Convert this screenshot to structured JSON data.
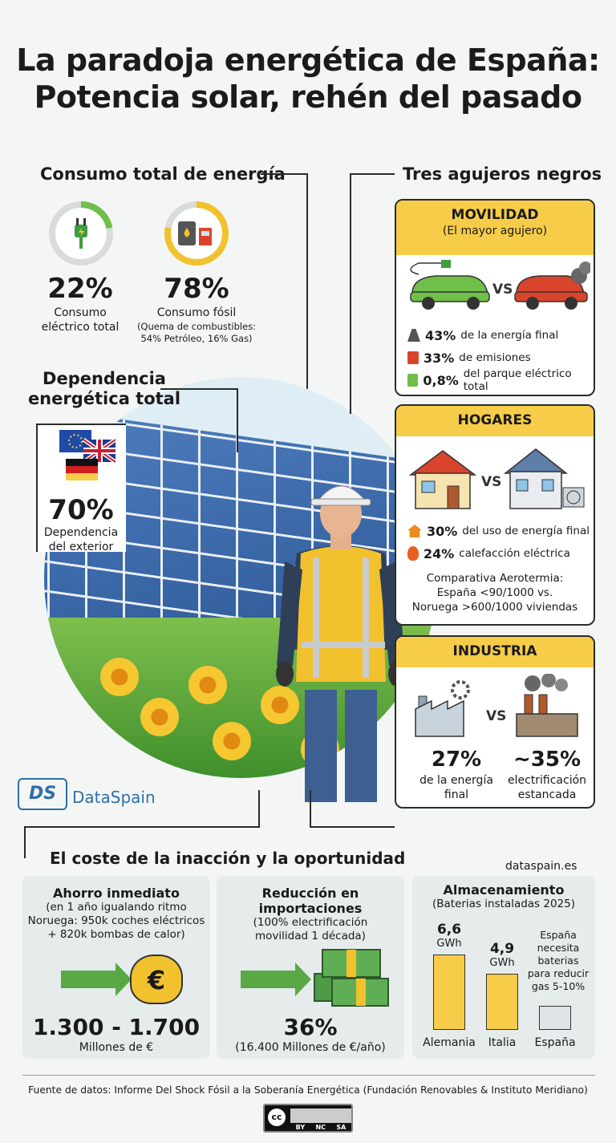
{
  "header": {
    "title_line1": "La paradoja energética de España:",
    "title_line2": "Potencia solar, rehén del pasado"
  },
  "consumo": {
    "heading": "Consumo total de energía",
    "electric": {
      "pct": "22%",
      "label_line1": "Consumo",
      "label_line2": "eléctrico total",
      "ring_fraction": 0.22
    },
    "fossil": {
      "pct": "78%",
      "label": "Consumo fósil",
      "detail_line1": "(Quema de combustibles:",
      "detail_line2": "54% Petróleo, 16% Gas)",
      "ring_fraction": 0.78
    },
    "icons": [
      "plug-icon",
      "fuel-pump-icon"
    ]
  },
  "dependencia": {
    "heading_line1": "Dependencia",
    "heading_line2": "energética total",
    "pct": "70%",
    "label_line1": "Dependencia",
    "label_line2": "del exterior",
    "flags": [
      "eu-flag-icon",
      "uk-flag-icon",
      "germany-flag-icon"
    ]
  },
  "agujeros": {
    "heading": "Tres agujeros negros",
    "movilidad": {
      "title": "MOVILIDAD",
      "subtitle": "(El mayor agujero)",
      "vs": "VS",
      "rows": [
        {
          "value": "43%",
          "text": "de la energía final",
          "icon": "road-icon"
        },
        {
          "value": "33%",
          "text": "de emisiones",
          "icon": "fuel-pump-icon"
        },
        {
          "value": "0,8%",
          "text": "del parque eléctrico total",
          "icon": "charger-icon"
        }
      ]
    },
    "hogares": {
      "title": "HOGARES",
      "vs": "VS",
      "rows": [
        {
          "value": "30%",
          "text": "del uso de energía final",
          "icon": "house-icon"
        },
        {
          "value": "24%",
          "text": "calefacción eléctrica",
          "icon": "flame-icon"
        }
      ],
      "note_line1": "Comparativa Aerotermia:",
      "note_line2": "España <90/1000 vs.",
      "note_line3": "Noruega >600/1000 viviendas"
    },
    "industria": {
      "title": "INDUSTRIA",
      "vs": "VS",
      "left_value": "27%",
      "left_label_line1": "de la energía",
      "left_label_line2": "final",
      "right_value": "~35%",
      "right_label_line1": "electrificación",
      "right_label_line2": "estancada"
    }
  },
  "brand": {
    "name": "DataSpain",
    "url": "dataspain.es"
  },
  "coste": {
    "heading": "El coste de la inacción y la oportunidad",
    "ahorro": {
      "title": "Ahorro inmediato",
      "sub_line1": "(en 1 año igualando ritmo",
      "sub_line2": "Noruega: 950k coches eléctricos",
      "sub_line3": "+ 820k bombas de calor)",
      "value": "1.300 - 1.700",
      "unit": "Millones de €",
      "bag_symbol": "€"
    },
    "reduccion": {
      "title": "Reducción en importaciones",
      "sub_line1": "(100% electrificación",
      "sub_line2": "movilidad 1 década)",
      "value": "36%",
      "unit": "(16.400 Millones de €/año)"
    },
    "almacenamiento": {
      "title": "Almacenamiento",
      "subtitle": "(Baterias instaladas 2025)",
      "note_line1": "España",
      "note_line2": "necesita",
      "note_line3": "baterias",
      "note_line4": "para reducir",
      "note_line5": "gas 5-10%"
    }
  },
  "chart_data": {
    "type": "bar",
    "title": "Almacenamiento",
    "subtitle": "(Baterias instaladas 2025)",
    "categories": [
      "Alemania",
      "Italia",
      "España"
    ],
    "values": [
      6.6,
      4.9,
      null
    ],
    "value_labels": [
      "6,6",
      "4,9",
      ""
    ],
    "unit": "GWh",
    "ylim": [
      0,
      7
    ]
  },
  "footer": {
    "source": "Fuente de datos: Informe Del Shock Fósil a la Soberanía Energética (Fundación Renovables & Instituto Meridiano)",
    "license": [
      "BY",
      "NC",
      "SA"
    ]
  }
}
